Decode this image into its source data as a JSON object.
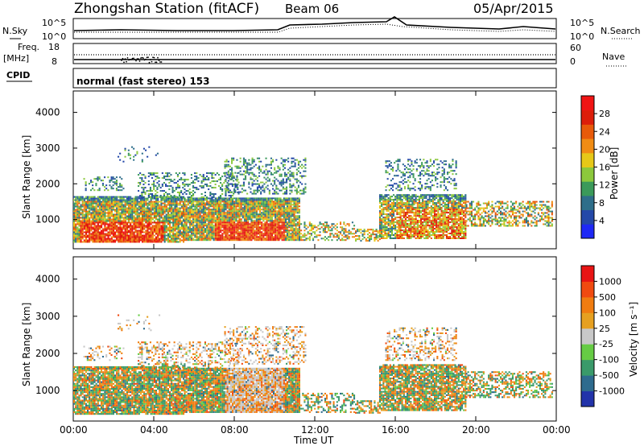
{
  "header": {
    "station": "Zhongshan Station (fitACF)",
    "beam": "Beam 06",
    "date": "05/Apr/2015"
  },
  "top_panels": {
    "nsky_label": "N.Sky",
    "nsky_ticks": [
      "10^5",
      "10^0"
    ],
    "nsearch_label": "N.Search",
    "nsearch_ticks": [
      "10^5",
      "10^0"
    ],
    "freq_label_1": "Freq.",
    "freq_label_2": "[MHz]",
    "freq_ticks": [
      "18",
      "8"
    ],
    "nave_label": "Nave",
    "nave_ticks": [
      "60",
      "0"
    ],
    "cpid_label": "CPID",
    "cpid_text": "normal (fast stereo) 153"
  },
  "chart_data": [
    {
      "type": "heatmap",
      "name": "power",
      "ylabel": "Slant Range [km]",
      "yticks": [
        "4000",
        "3000",
        "2000",
        "1000"
      ],
      "ylim": [
        180,
        4600
      ],
      "xlim": [
        0,
        24
      ],
      "colorbar_label": "Power [dB]",
      "colorbar_ticks": [
        "28",
        "24",
        "20",
        "16",
        "12",
        "8",
        "4"
      ],
      "colors": [
        "#1e28f5",
        "#2448a8",
        "#2e6e8a",
        "#3b9a5a",
        "#8cc83c",
        "#e6c818",
        "#f08c14",
        "#e85a0a",
        "#dc1e0a",
        "#f01414"
      ]
    },
    {
      "type": "heatmap",
      "name": "velocity",
      "ylabel": "Slant Range [km]",
      "yticks": [
        "4000",
        "3000",
        "2000",
        "1000"
      ],
      "ylim": [
        180,
        4600
      ],
      "xlim": [
        0,
        24
      ],
      "xlabel": "Time UT",
      "xticks": [
        "00:00",
        "04:00",
        "08:00",
        "12:00",
        "16:00",
        "20:00",
        "00:00"
      ],
      "colorbar_label": "Velocity [m s⁻¹]",
      "colorbar_ticks": [
        "1000",
        "500",
        "100",
        "25",
        "-25",
        "-100",
        "-500",
        "-1000"
      ],
      "colors": [
        "#2233aa",
        "#2e6b8e",
        "#3a9a6a",
        "#66cc44",
        "#c8c8c8",
        "#e6a020",
        "#f07c10",
        "#f04a10",
        "#e81414"
      ]
    }
  ]
}
